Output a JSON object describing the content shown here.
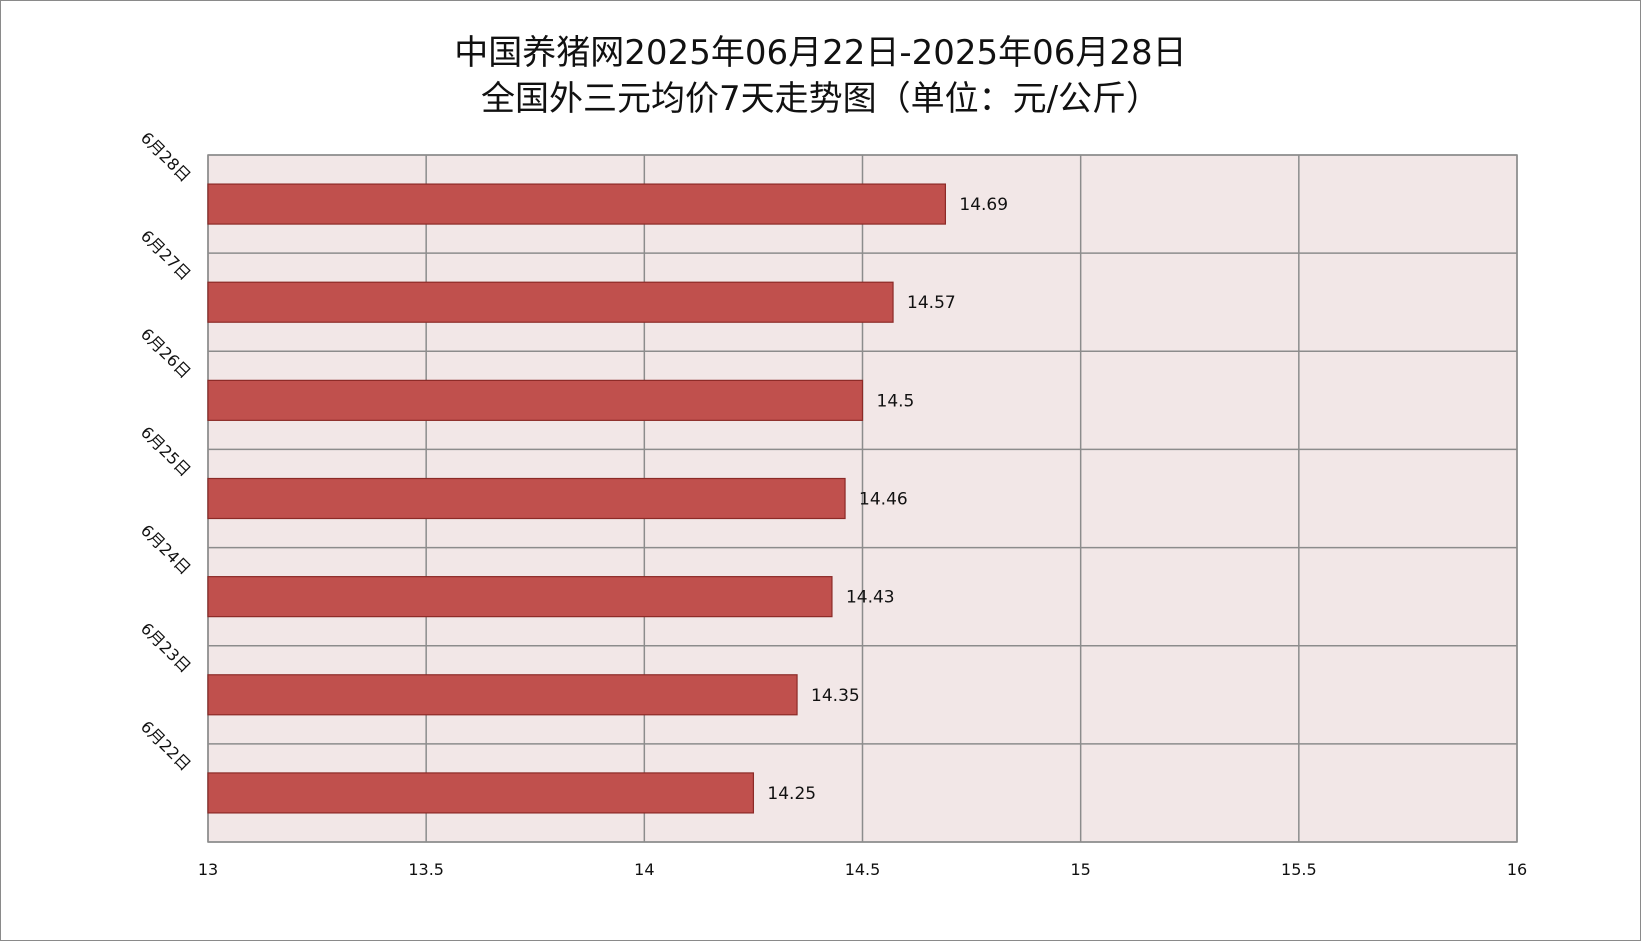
{
  "chart_data": {
    "type": "bar",
    "orientation": "horizontal",
    "title": "中国养猪网2025年06月22日-2025年06月28日",
    "subtitle": "全国外三元均价7天走势图（单位：元/公斤）",
    "categories": [
      "6月22日",
      "6月23日",
      "6月24日",
      "6月25日",
      "6月26日",
      "6月27日",
      "6月28日"
    ],
    "values": [
      14.25,
      14.35,
      14.43,
      14.46,
      14.5,
      14.57,
      14.69
    ],
    "data_labels": [
      "14.25",
      "14.35",
      "14.43",
      "14.46",
      "14.5",
      "14.57",
      "14.69"
    ],
    "xlim": [
      13,
      16
    ],
    "xticks": [
      13,
      13.5,
      14,
      14.5,
      15,
      15.5,
      16
    ],
    "xtick_labels": [
      "13",
      "13.5",
      "14",
      "14.5",
      "15",
      "15.5",
      "16"
    ],
    "xlabel": "",
    "ylabel": "",
    "grid": true,
    "legend": "none",
    "colors": {
      "bar_fill": "#C0504D",
      "bar_stroke": "#8C2A27",
      "plot_bg": "#F2E7E7",
      "grid": "#8C8C8C",
      "axis": "#8C8C8C"
    }
  }
}
